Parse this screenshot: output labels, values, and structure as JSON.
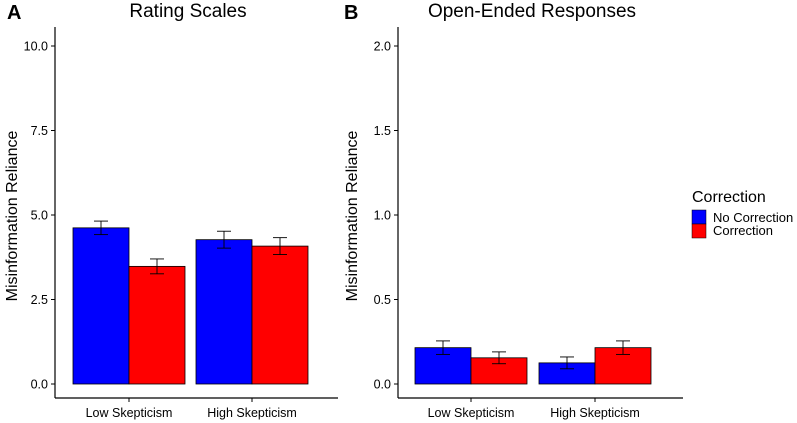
{
  "legend": {
    "title": "Correction",
    "entries": [
      {
        "name": "No Correction",
        "color": "#0000FF"
      },
      {
        "name": "Correction",
        "color": "#FF0000"
      }
    ]
  },
  "chart_data": [
    {
      "type": "bar",
      "panel": "A",
      "title": "Rating Scales",
      "xlabel": "",
      "ylabel": "Misinformation Reliance",
      "categories": [
        "Low Skepticism",
        "High Skepticism"
      ],
      "ylim": [
        0,
        10
      ],
      "yticks": [
        0,
        2.5,
        5,
        7.5,
        10
      ],
      "ytick_labels": [
        "0.0",
        "2.5",
        "5.0",
        "7.5",
        "10.0"
      ],
      "series": [
        {
          "name": "No Correction",
          "color": "#0000FF",
          "values": [
            4.62,
            4.27
          ],
          "errors": [
            0.2,
            0.25
          ]
        },
        {
          "name": "Correction",
          "color": "#FF0000",
          "values": [
            3.48,
            4.08
          ],
          "errors": [
            0.22,
            0.25
          ]
        }
      ],
      "grid": false
    },
    {
      "type": "bar",
      "panel": "B",
      "title": "Open-Ended Responses",
      "xlabel": "",
      "ylabel": "Misinformation Reliance",
      "categories": [
        "Low Skepticism",
        "High Skepticism"
      ],
      "ylim": [
        0,
        2
      ],
      "yticks": [
        0,
        0.5,
        1,
        1.5,
        2
      ],
      "ytick_labels": [
        "0.0",
        "0.5",
        "1.0",
        "1.5",
        "2.0"
      ],
      "series": [
        {
          "name": "No Correction",
          "color": "#0000FF",
          "values": [
            0.215,
            0.125
          ],
          "errors": [
            0.04,
            0.035
          ]
        },
        {
          "name": "Correction",
          "color": "#FF0000",
          "values": [
            0.155,
            0.215
          ],
          "errors": [
            0.035,
            0.04
          ]
        }
      ],
      "grid": false
    }
  ]
}
